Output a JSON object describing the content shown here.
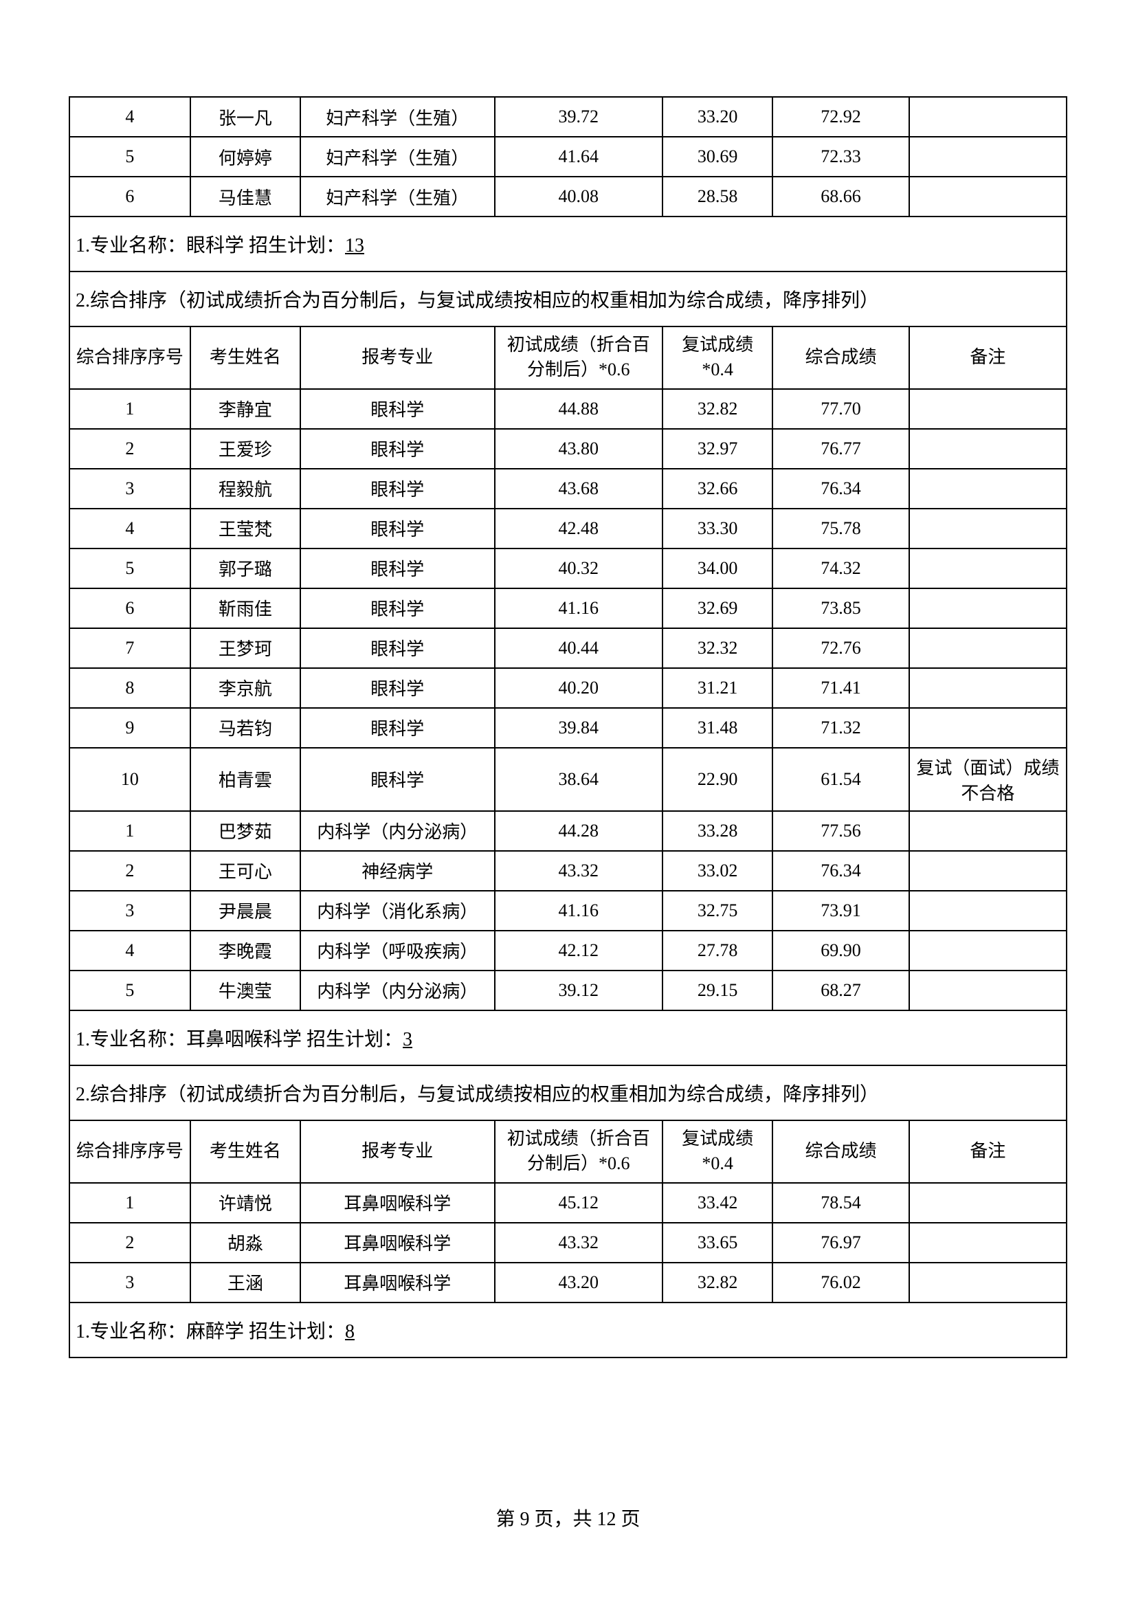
{
  "footer": {
    "text": "第 9 页，共 12 页"
  },
  "common": {
    "header_prefix": "1.专业名称：",
    "plan_prefix": " 招生计划：",
    "ranking_note": "2.综合排序（初试成绩折合为百分制后，与复试成绩按相应的权重相加为综合成绩，降序排列）",
    "cols": {
      "rank": "综合排序序号",
      "name": "考生姓名",
      "major": "报考专业",
      "score1": "初试成绩（折合百分制后）*0.6",
      "score2": "复试成绩*0.4",
      "total": "综合成绩",
      "note": "备注"
    }
  },
  "block_top": {
    "rows": [
      {
        "rank": "4",
        "name": "张一凡",
        "major": "妇产科学（生殖）",
        "s1": "39.72",
        "s2": "33.20",
        "total": "72.92",
        "note": ""
      },
      {
        "rank": "5",
        "name": "何婷婷",
        "major": "妇产科学（生殖）",
        "s1": "41.64",
        "s2": "30.69",
        "total": "72.33",
        "note": ""
      },
      {
        "rank": "6",
        "name": "马佳慧",
        "major": "妇产科学（生殖）",
        "s1": "40.08",
        "s2": "28.58",
        "total": "68.66",
        "note": ""
      }
    ]
  },
  "block_eye": {
    "major_name": "眼科学",
    "plan": "13",
    "rows": [
      {
        "rank": "1",
        "name": "李静宜",
        "major": "眼科学",
        "s1": "44.88",
        "s2": "32.82",
        "total": "77.70",
        "note": ""
      },
      {
        "rank": "2",
        "name": "王爱珍",
        "major": "眼科学",
        "s1": "43.80",
        "s2": "32.97",
        "total": "76.77",
        "note": ""
      },
      {
        "rank": "3",
        "name": "程毅航",
        "major": "眼科学",
        "s1": "43.68",
        "s2": "32.66",
        "total": "76.34",
        "note": ""
      },
      {
        "rank": "4",
        "name": "王莹梵",
        "major": "眼科学",
        "s1": "42.48",
        "s2": "33.30",
        "total": "75.78",
        "note": ""
      },
      {
        "rank": "5",
        "name": "郭子璐",
        "major": "眼科学",
        "s1": "40.32",
        "s2": "34.00",
        "total": "74.32",
        "note": ""
      },
      {
        "rank": "6",
        "name": "靳雨佳",
        "major": "眼科学",
        "s1": "41.16",
        "s2": "32.69",
        "total": "73.85",
        "note": ""
      },
      {
        "rank": "7",
        "name": "王梦珂",
        "major": "眼科学",
        "s1": "40.44",
        "s2": "32.32",
        "total": "72.76",
        "note": ""
      },
      {
        "rank": "8",
        "name": "李京航",
        "major": "眼科学",
        "s1": "40.20",
        "s2": "31.21",
        "total": "71.41",
        "note": ""
      },
      {
        "rank": "9",
        "name": "马若钧",
        "major": "眼科学",
        "s1": "39.84",
        "s2": "31.48",
        "total": "71.32",
        "note": ""
      },
      {
        "rank": "10",
        "name": "柏青雲",
        "major": "眼科学",
        "s1": "38.64",
        "s2": "22.90",
        "total": "61.54",
        "note": "复试（面试）成绩不合格"
      },
      {
        "rank": "1",
        "name": "巴梦茹",
        "major": "内科学（内分泌病）",
        "s1": "44.28",
        "s2": "33.28",
        "total": "77.56",
        "note": ""
      },
      {
        "rank": "2",
        "name": "王可心",
        "major": "神经病学",
        "s1": "43.32",
        "s2": "33.02",
        "total": "76.34",
        "note": ""
      },
      {
        "rank": "3",
        "name": "尹晨晨",
        "major": "内科学（消化系病）",
        "s1": "41.16",
        "s2": "32.75",
        "total": "73.91",
        "note": ""
      },
      {
        "rank": "4",
        "name": "李晚霞",
        "major": "内科学（呼吸疾病）",
        "s1": "42.12",
        "s2": "27.78",
        "total": "69.90",
        "note": ""
      },
      {
        "rank": "5",
        "name": "牛澳莹",
        "major": "内科学（内分泌病）",
        "s1": "39.12",
        "s2": "29.15",
        "total": "68.27",
        "note": ""
      }
    ]
  },
  "block_ent": {
    "major_name": "耳鼻咽喉科学",
    "plan": "3",
    "rows": [
      {
        "rank": "1",
        "name": "许靖悦",
        "major": "耳鼻咽喉科学",
        "s1": "45.12",
        "s2": "33.42",
        "total": "78.54",
        "note": ""
      },
      {
        "rank": "2",
        "name": "胡淼",
        "major": "耳鼻咽喉科学",
        "s1": "43.32",
        "s2": "33.65",
        "total": "76.97",
        "note": ""
      },
      {
        "rank": "3",
        "name": "王涵",
        "major": "耳鼻咽喉科学",
        "s1": "43.20",
        "s2": "32.82",
        "total": "76.02",
        "note": ""
      }
    ]
  },
  "block_anes": {
    "major_name": "麻醉学",
    "plan": "8"
  }
}
